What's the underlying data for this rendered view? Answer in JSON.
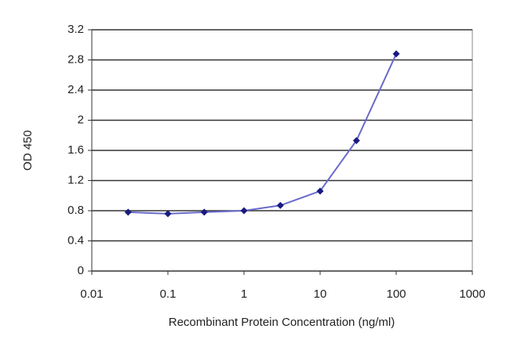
{
  "chart_data": {
    "type": "line",
    "x_label": "Recombinant Protein Concentration (ng/ml)",
    "y_label": "OD 450",
    "x": [
      0.03,
      0.1,
      0.3,
      1,
      3,
      10,
      30,
      100
    ],
    "series": [
      {
        "name": "OD 450",
        "line_color": "#6a6acb",
        "color": "#1a1a80",
        "values": [
          0.78,
          0.76,
          0.78,
          0.8,
          0.87,
          1.06,
          1.73,
          2.88
        ]
      }
    ],
    "xscale": "log",
    "xlim": [
      0.01,
      1000
    ],
    "xticks": [
      0.01,
      0.1,
      1,
      10,
      100,
      1000
    ],
    "ylim": [
      0,
      3.2
    ],
    "yticks": [
      0,
      0.4,
      0.8,
      1.2,
      1.6,
      2,
      2.4,
      2.8,
      3.2
    ],
    "grid": true
  }
}
